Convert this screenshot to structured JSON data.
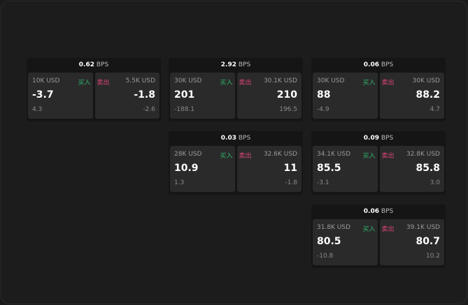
{
  "unit": "BPS",
  "buy_label": "买入",
  "sell_label": "卖出",
  "colors": {
    "buy": "#2fb36a",
    "sell": "#e0457b"
  },
  "panels": [
    {
      "spread": "0.62",
      "bid": {
        "qty": "10K USD",
        "price": "-3.7",
        "change": "4.3"
      },
      "ask": {
        "qty": "5.5K USD",
        "price": "-1.8",
        "change": "-2.6"
      }
    },
    {
      "spread": "2.92",
      "bid": {
        "qty": "30K USD",
        "price": "201",
        "change": "-188.1"
      },
      "ask": {
        "qty": "30.1K USD",
        "price": "210",
        "change": "196.5"
      }
    },
    {
      "spread": "0.06",
      "bid": {
        "qty": "30K USD",
        "price": "88",
        "change": "-4.9"
      },
      "ask": {
        "qty": "30K USD",
        "price": "88.2",
        "change": "4.7"
      }
    },
    {
      "spread": "0.03",
      "bid": {
        "qty": "28K USD",
        "price": "10.9",
        "change": "1.3"
      },
      "ask": {
        "qty": "32.6K USD",
        "price": "11",
        "change": "-1.8"
      }
    },
    {
      "spread": "0.09",
      "bid": {
        "qty": "34.1K USD",
        "price": "85.5",
        "change": "-3.1"
      },
      "ask": {
        "qty": "32.8K USD",
        "price": "85.8",
        "change": "3.0"
      }
    },
    {
      "spread": "0.06",
      "bid": {
        "qty": "31.8K USD",
        "price": "80.5",
        "change": "-10.8"
      },
      "ask": {
        "qty": "39.1K USD",
        "price": "80.7",
        "change": "10.2"
      }
    }
  ]
}
